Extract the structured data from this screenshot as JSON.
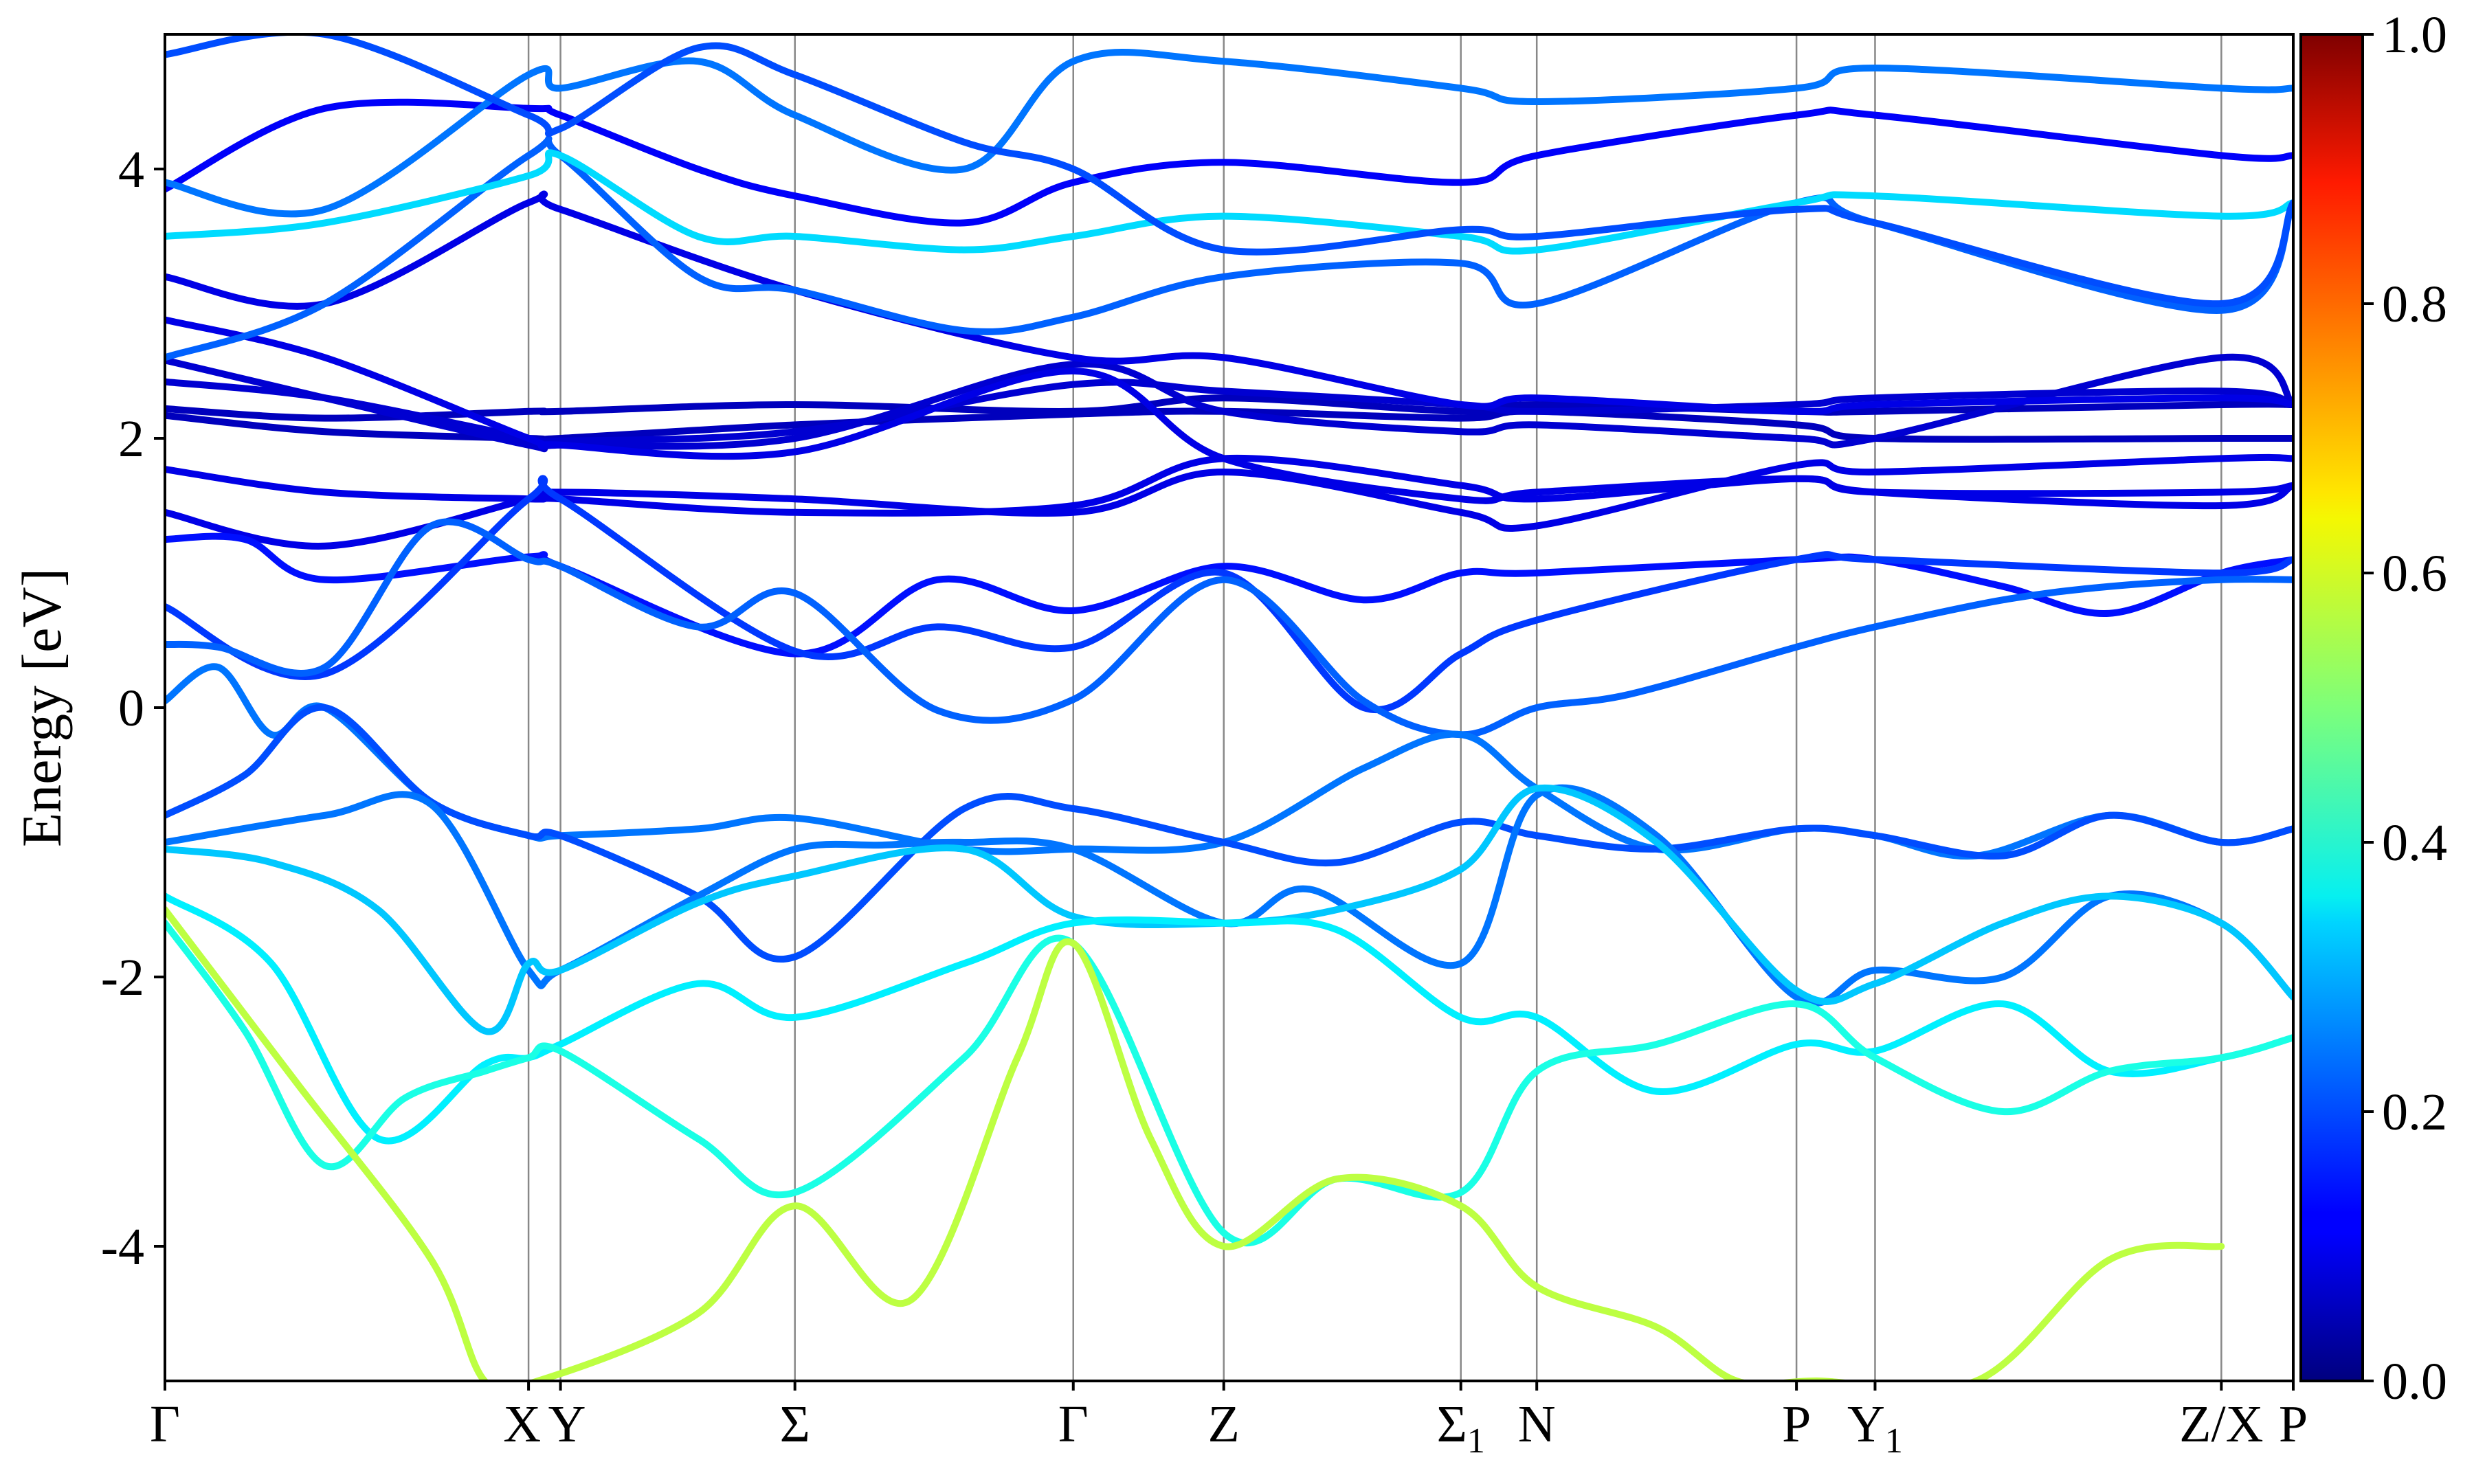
{
  "chart_data": {
    "type": "line",
    "title": "",
    "xlabel": "",
    "ylabel": "Energy [eV]",
    "ylim": [
      -5,
      5
    ],
    "y_ticks": [
      "-4",
      "-2",
      "0",
      "2",
      "4"
    ],
    "y_tick_values": [
      -4,
      -2,
      0,
      2,
      4
    ],
    "grid": false,
    "high_symmetry_points": [
      {
        "label": "Γ",
        "sub": "",
        "x": 0.0
      },
      {
        "label": "X",
        "sub": "",
        "x": 1.365
      },
      {
        "label": "Y",
        "sub": "",
        "x": 1.485
      },
      {
        "label": "Σ",
        "sub": "",
        "x": 2.365
      },
      {
        "label": "Γ",
        "sub": "",
        "x": 3.41
      },
      {
        "label": "Z",
        "sub": "",
        "x": 3.975
      },
      {
        "label": "Σ",
        "sub": "1",
        "x": 4.865
      },
      {
        "label": "N",
        "sub": "",
        "x": 5.15
      },
      {
        "label": "P",
        "sub": "",
        "x": 6.125
      },
      {
        "label": "Y",
        "sub": "1",
        "x": 6.42
      },
      {
        "label": "Z/X",
        "sub": "",
        "x": 7.72
      },
      {
        "label": "P",
        "sub": "",
        "x": 7.99
      }
    ],
    "x_range": [
      0,
      7.99
    ],
    "colorbar": {
      "colormap": "jet",
      "range": [
        0.0,
        1.0
      ],
      "ticks": [
        "0.0",
        "0.2",
        "0.4",
        "0.6",
        "0.8",
        "1.0"
      ],
      "tick_values": [
        0.0,
        0.2,
        0.4,
        0.6,
        0.8,
        1.0
      ]
    },
    "series": [
      {
        "x": [
          0,
          0.6,
          1.365,
          1.485,
          2.365,
          3.41,
          3.975,
          4.865,
          5.15,
          6.125,
          6.42,
          7.72,
          7.99
        ],
        "y": [
          2.22,
          2.15,
          2.2,
          2.2,
          2.25,
          2.2,
          2.3,
          2.2,
          2.25,
          2.2,
          2.2,
          2.25,
          2.25
        ],
        "weight": 0.06
      },
      {
        "x": [
          0,
          0.6,
          1.365,
          1.485,
          2.365,
          3.41,
          3.975,
          4.865,
          5.15,
          6.125,
          6.42,
          7.72,
          7.99
        ],
        "y": [
          2.17,
          2.05,
          2.0,
          2.0,
          2.1,
          2.18,
          2.2,
          2.15,
          2.2,
          2.1,
          2.0,
          2.0,
          2.0
        ],
        "weight": 0.06
      },
      {
        "x": [
          0,
          0.6,
          1.365,
          1.485,
          2.365,
          3.41,
          3.975,
          4.865,
          5.15,
          6.125,
          6.42,
          7.72,
          7.99
        ],
        "y": [
          2.42,
          2.3,
          2.0,
          1.98,
          2.05,
          2.4,
          2.35,
          2.25,
          2.2,
          2.25,
          2.3,
          2.35,
          2.25
        ],
        "weight": 0.08
      },
      {
        "x": [
          0,
          0.6,
          1.365,
          1.485,
          2.365,
          3.41,
          3.975,
          4.865,
          5.15,
          6.125,
          6.42,
          7.72,
          7.99
        ],
        "y": [
          2.58,
          2.3,
          1.95,
          1.95,
          2.0,
          2.55,
          2.2,
          2.05,
          2.1,
          2.0,
          2.0,
          2.6,
          2.25
        ],
        "weight": 0.08
      },
      {
        "x": [
          0,
          0.6,
          1.365,
          1.485,
          2.365,
          3.41,
          3.975,
          4.865,
          5.15,
          6.125,
          6.42,
          7.72,
          7.99
        ],
        "y": [
          2.88,
          2.6,
          2.0,
          1.95,
          1.9,
          2.5,
          1.85,
          1.55,
          1.6,
          1.7,
          1.6,
          1.5,
          1.65
        ],
        "weight": 0.1
      },
      {
        "x": [
          0,
          0.6,
          1.365,
          1.485,
          2.365,
          3.41,
          3.975,
          4.865,
          5.15,
          6.125,
          6.42,
          7.72,
          7.99
        ],
        "y": [
          1.77,
          1.6,
          1.55,
          1.55,
          1.45,
          1.5,
          1.85,
          1.65,
          1.55,
          1.7,
          1.6,
          1.6,
          1.65
        ],
        "weight": 0.1
      },
      {
        "x": [
          0,
          0.6,
          1.365,
          1.485,
          2.365,
          3.41,
          3.975,
          4.865,
          5.15,
          6.125,
          6.42,
          7.72,
          7.99
        ],
        "y": [
          1.45,
          1.2,
          1.55,
          1.6,
          1.55,
          1.45,
          1.75,
          1.45,
          1.35,
          1.8,
          1.75,
          1.85,
          1.85
        ],
        "weight": 0.1
      },
      {
        "x": [
          0,
          0.3,
          0.6,
          1.365,
          1.485,
          2.365,
          2.9,
          3.41,
          3.975,
          4.5,
          4.865,
          5.15,
          6.125,
          6.42,
          6.9,
          7.3,
          7.72,
          7.99
        ],
        "y": [
          1.25,
          1.25,
          0.95,
          1.12,
          1.05,
          0.4,
          0.95,
          0.72,
          1.05,
          0.8,
          1.0,
          1.0,
          1.1,
          1.1,
          0.9,
          0.7,
          1.0,
          1.1
        ],
        "weight": 0.14
      },
      {
        "x": [
          0,
          0.6,
          1.365,
          1.485,
          2.365,
          2.9,
          3.41,
          3.975,
          4.5,
          4.865,
          5.15,
          6.125,
          6.42,
          7.72,
          7.99
        ],
        "y": [
          0.75,
          0.25,
          1.55,
          1.55,
          0.42,
          0.6,
          0.45,
          1.0,
          0.0,
          0.4,
          0.65,
          1.1,
          1.1,
          1.0,
          1.1
        ],
        "weight": 0.18
      },
      {
        "x": [
          0,
          0.2,
          0.6,
          1.0,
          1.365,
          1.485,
          2.0,
          2.365,
          2.9,
          3.41,
          3.975,
          4.5,
          4.865,
          5.15,
          5.5,
          6.125,
          6.42,
          6.9,
          7.3,
          7.72,
          7.99
        ],
        "y": [
          0.47,
          0.45,
          0.3,
          1.35,
          1.1,
          1.05,
          0.6,
          0.85,
          -0.02,
          0.06,
          0.95,
          0.05,
          -0.2,
          0.0,
          0.1,
          0.45,
          0.6,
          0.8,
          0.9,
          0.95,
          0.95
        ],
        "weight": 0.22
      },
      {
        "x": [
          0,
          0.2,
          0.4,
          0.6,
          1.0,
          1.365,
          1.485,
          2.0,
          2.365,
          3.0,
          3.41,
          3.975,
          4.5,
          4.865,
          5.15,
          5.6,
          6.125,
          6.42,
          6.8,
          7.3,
          7.72,
          7.99
        ],
        "y": [
          0.05,
          0.3,
          -0.2,
          0.0,
          -0.7,
          -0.95,
          -0.95,
          -0.9,
          -0.82,
          -1.05,
          -1.05,
          -1.0,
          -0.45,
          -0.2,
          -0.6,
          -1.05,
          -0.9,
          -0.95,
          -1.1,
          -0.8,
          -1.0,
          -0.9
        ],
        "weight": 0.24
      },
      {
        "x": [
          0,
          0.3,
          0.6,
          1.0,
          1.365,
          1.485,
          2.0,
          2.365,
          3.0,
          3.41,
          3.975,
          4.4,
          4.865,
          5.15,
          5.6,
          6.125,
          6.42,
          6.9,
          7.3,
          7.72,
          7.99
        ],
        "y": [
          -0.8,
          -0.5,
          0.0,
          -0.7,
          -0.95,
          -0.95,
          -1.4,
          -1.85,
          -0.75,
          -0.75,
          -1.0,
          -1.15,
          -0.85,
          -0.95,
          -1.05,
          -0.9,
          -0.95,
          -1.1,
          -0.8,
          -1.0,
          -0.9
        ],
        "weight": 0.2
      },
      {
        "x": [
          0,
          0.6,
          1.0,
          1.365,
          1.485,
          2.0,
          2.365,
          2.7,
          3.0,
          3.41,
          3.975,
          4.3,
          4.865,
          5.15,
          5.6,
          6.125,
          6.42,
          6.9,
          7.3,
          7.72,
          7.99
        ],
        "y": [
          -1.0,
          -0.8,
          -0.72,
          -1.95,
          -1.95,
          -1.4,
          -1.05,
          -1.02,
          -1.0,
          -1.05,
          -1.6,
          -1.35,
          -1.9,
          -0.65,
          -0.95,
          -2.15,
          -1.95,
          -2.0,
          -1.4,
          -1.6,
          -2.15
        ],
        "weight": 0.24
      },
      {
        "x": [
          0,
          0.4,
          0.8,
          1.2,
          1.365,
          1.485,
          2.0,
          2.365,
          3.0,
          3.41,
          3.975,
          4.4,
          4.865,
          5.15,
          5.6,
          6.125,
          6.42,
          6.9,
          7.3,
          7.72,
          7.99
        ],
        "y": [
          -1.05,
          -1.15,
          -1.5,
          -2.4,
          -1.9,
          -1.95,
          -1.45,
          -1.25,
          -1.05,
          -1.55,
          -1.6,
          -1.5,
          -1.2,
          -0.6,
          -1.0,
          -2.1,
          -2.05,
          -1.6,
          -1.4,
          -1.6,
          -2.15
        ],
        "weight": 0.32
      },
      {
        "x": [
          0,
          0.4,
          0.8,
          1.2,
          1.365,
          1.485,
          2.0,
          2.365,
          3.0,
          3.41,
          3.975,
          4.4,
          4.865,
          5.15,
          5.6,
          6.125,
          6.42,
          6.9,
          7.3,
          7.72,
          7.99
        ],
        "y": [
          -1.4,
          -1.9,
          -3.2,
          -2.65,
          -2.6,
          -2.5,
          -2.05,
          -2.3,
          -1.9,
          -1.6,
          -1.6,
          -1.65,
          -2.3,
          -2.3,
          -2.85,
          -2.5,
          -2.55,
          -2.2,
          -2.7,
          -2.6,
          -2.45
        ],
        "weight": 0.36
      },
      {
        "x": [
          0,
          0.3,
          0.6,
          0.9,
          1.2,
          1.365,
          1.485,
          2.0,
          2.365,
          3.0,
          3.41,
          3.975,
          4.4,
          4.865,
          5.15,
          5.6,
          6.125,
          6.42,
          6.9,
          7.3,
          7.72,
          7.99
        ],
        "y": [
          -1.6,
          -2.4,
          -3.4,
          -2.9,
          -2.7,
          -2.6,
          -2.55,
          -3.2,
          -3.6,
          -2.6,
          -1.75,
          -3.9,
          -3.5,
          -3.6,
          -2.7,
          -2.5,
          -2.2,
          -2.6,
          -3.0,
          -2.7,
          -2.6,
          -2.45
        ],
        "weight": 0.4
      },
      {
        "x": [
          0,
          0.5,
          1.0,
          1.2,
          1.4,
          2.0,
          2.365,
          2.8,
          3.2,
          3.41,
          3.7,
          3.975,
          4.4,
          4.865,
          5.15,
          5.6,
          5.9,
          6.2,
          6.8,
          7.3,
          7.72
        ],
        "y": [
          -1.5,
          -2.8,
          -4.1,
          -5.0,
          -5.0,
          -4.5,
          -3.7,
          -4.4,
          -2.6,
          -1.75,
          -3.2,
          -4.0,
          -3.5,
          -3.7,
          -4.3,
          -4.6,
          -5.0,
          -5.0,
          -5.0,
          -4.1,
          -4.0
        ],
        "weight": 0.56
      },
      {
        "x": [
          0,
          0.6,
          1.365,
          1.485,
          2.365,
          3.41,
          3.975,
          4.865,
          5.15,
          6.125,
          6.42,
          7.72,
          7.99
        ],
        "y": [
          3.2,
          3.0,
          3.75,
          3.7,
          3.1,
          2.6,
          2.6,
          2.25,
          2.3,
          2.2,
          2.25,
          2.3,
          2.25
        ],
        "weight": 0.1
      },
      {
        "x": [
          0,
          0.6,
          1.365,
          1.485,
          2.0,
          2.365,
          3.0,
          3.41,
          3.975,
          4.865,
          5.15,
          6.125,
          6.42,
          7.72,
          7.99
        ],
        "y": [
          2.6,
          3.0,
          4.1,
          4.1,
          3.2,
          3.1,
          2.8,
          2.9,
          3.2,
          3.3,
          3.0,
          3.75,
          3.6,
          2.95,
          3.75
        ],
        "weight": 0.22
      },
      {
        "x": [
          0,
          0.6,
          1.365,
          1.485,
          2.0,
          2.365,
          3.0,
          3.41,
          3.975,
          4.865,
          5.15,
          6.125,
          6.42,
          7.72,
          7.99
        ],
        "y": [
          3.5,
          3.6,
          3.95,
          4.1,
          3.5,
          3.5,
          3.4,
          3.5,
          3.65,
          3.5,
          3.4,
          3.75,
          3.8,
          3.65,
          3.75
        ],
        "weight": 0.34
      },
      {
        "x": [
          0,
          0.6,
          1.365,
          1.485,
          2.0,
          2.365,
          3.0,
          3.41,
          3.975,
          4.865,
          5.15,
          6.125,
          6.42,
          7.72,
          7.99
        ],
        "y": [
          3.85,
          4.45,
          4.45,
          4.4,
          4.0,
          3.8,
          3.6,
          3.9,
          4.05,
          3.9,
          4.1,
          4.4,
          4.4,
          4.1,
          4.1
        ],
        "weight": 0.12
      },
      {
        "x": [
          0,
          0.6,
          1.365,
          1.485,
          2.0,
          2.365,
          3.0,
          3.41,
          3.975,
          4.865,
          5.15,
          6.125,
          6.42,
          7.72,
          7.99
        ],
        "y": [
          3.9,
          3.7,
          4.7,
          4.6,
          4.8,
          4.4,
          4.0,
          4.8,
          4.8,
          4.6,
          4.5,
          4.6,
          4.75,
          4.6,
          4.6
        ],
        "weight": 0.24
      },
      {
        "x": [
          0,
          0.6,
          1.365,
          1.485,
          2.0,
          2.365,
          3.0,
          3.41,
          3.975,
          4.865,
          5.15,
          6.125,
          6.42,
          7.72,
          7.99
        ],
        "y": [
          4.85,
          5.0,
          4.4,
          4.3,
          4.9,
          4.7,
          4.2,
          4.0,
          3.4,
          3.55,
          3.5,
          3.7,
          3.6,
          3.0,
          3.75
        ],
        "weight": 0.2
      }
    ]
  }
}
